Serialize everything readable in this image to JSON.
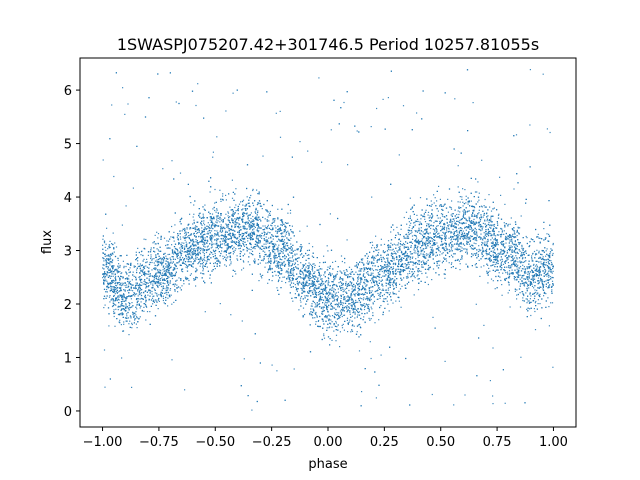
{
  "chart_data": {
    "type": "scatter",
    "title": "1SWASPJ075207.42+301746.5 Period 10257.81055s",
    "xlabel": "phase",
    "ylabel": "flux",
    "xlim": [
      -1.1,
      1.1
    ],
    "ylim": [
      -0.3,
      6.6
    ],
    "xticks": [
      -1.0,
      -0.75,
      -0.5,
      -0.25,
      0.0,
      0.25,
      0.5,
      0.75,
      1.0
    ],
    "xtick_labels": [
      "−1.00",
      "−0.75",
      "−0.50",
      "−0.25",
      "0.00",
      "0.25",
      "0.50",
      "0.75",
      "1.00"
    ],
    "yticks": [
      0,
      1,
      2,
      3,
      4,
      5,
      6
    ],
    "ytick_labels": [
      "0",
      "1",
      "2",
      "3",
      "4",
      "5",
      "6"
    ],
    "grid": false,
    "marker_color": "#1f77b4",
    "series": [
      {
        "phase_range": [
          -1.0,
          1.0
        ],
        "approx_mean_flux": [
          {
            "phase": -1.0,
            "flux": 2.7
          },
          {
            "phase": -0.9,
            "flux": 2.15
          },
          {
            "phase": -0.75,
            "flux": 2.55
          },
          {
            "phase": -0.6,
            "flux": 3.05
          },
          {
            "phase": -0.5,
            "flux": 3.3
          },
          {
            "phase": -0.35,
            "flux": 3.4
          },
          {
            "phase": -0.2,
            "flux": 3.0
          },
          {
            "phase": -0.1,
            "flux": 2.45
          },
          {
            "phase": 0.0,
            "flux": 2.1
          },
          {
            "phase": 0.1,
            "flux": 2.15
          },
          {
            "phase": 0.25,
            "flux": 2.6
          },
          {
            "phase": 0.4,
            "flux": 3.1
          },
          {
            "phase": 0.5,
            "flux": 3.3
          },
          {
            "phase": 0.65,
            "flux": 3.4
          },
          {
            "phase": 0.8,
            "flux": 3.0
          },
          {
            "phase": 0.9,
            "flux": 2.5
          },
          {
            "phase": 1.0,
            "flux": 2.7
          }
        ],
        "scatter_half_width": 0.6,
        "outlier_range": [
          0.0,
          6.4
        ]
      }
    ]
  }
}
